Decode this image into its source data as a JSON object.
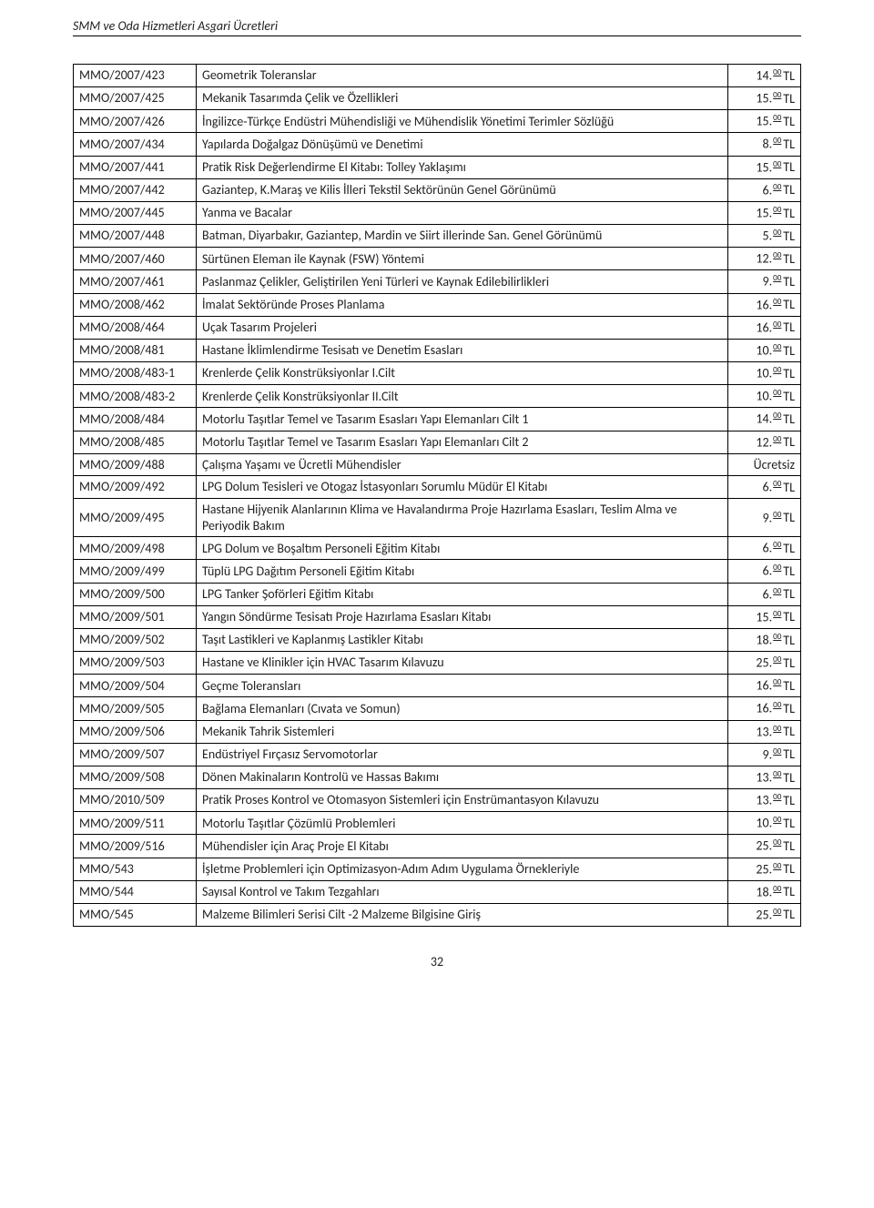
{
  "header": {
    "title": "SMM ve Oda Hizmetleri Asgari Ücretleri"
  },
  "table": {
    "columns": [
      "code",
      "title",
      "price"
    ],
    "rows": [
      {
        "code": "MMO/2007/423",
        "title": "Geometrik Toleranslar",
        "int": "14.",
        "cents": "00",
        "cur": "TL"
      },
      {
        "code": "MMO/2007/425",
        "title": "Mekanik Tasarımda Çelik ve Özellikleri",
        "int": "15.",
        "cents": "00",
        "cur": "TL"
      },
      {
        "code": "MMO/2007/426",
        "title": "İngilizce-Türkçe Endüstri Mühendisliği ve Mühendislik Yönetimi Terimler Sözlüğü",
        "int": "15.",
        "cents": "00",
        "cur": "TL"
      },
      {
        "code": "MMO/2007/434",
        "title": "Yapılarda Doğalgaz Dönüşümü ve Denetimi",
        "int": "8.",
        "cents": "00",
        "cur": "TL"
      },
      {
        "code": "MMO/2007/441",
        "title": "Pratik Risk Değerlendirme El Kitabı: Tolley Yaklaşımı",
        "int": "15.",
        "cents": "00",
        "cur": "TL"
      },
      {
        "code": "MMO/2007/442",
        "title": "Gaziantep, K.Maraş ve Kilis İlleri Tekstil Sektörünün Genel Görünümü",
        "int": "6.",
        "cents": "00",
        "cur": "TL"
      },
      {
        "code": "MMO/2007/445",
        "title": "Yanma ve Bacalar",
        "int": "15.",
        "cents": "00",
        "cur": "TL"
      },
      {
        "code": "MMO/2007/448",
        "title": "Batman, Diyarbakır, Gaziantep, Mardin ve Siirt illerinde San. Genel Görünümü",
        "int": "5.",
        "cents": "00",
        "cur": "TL"
      },
      {
        "code": "MMO/2007/460",
        "title": "Sürtünen Eleman ile Kaynak (FSW) Yöntemi",
        "int": "12.",
        "cents": "00",
        "cur": "TL"
      },
      {
        "code": "MMO/2007/461",
        "title": "Paslanmaz Çelikler, Geliştirilen Yeni Türleri ve Kaynak Edilebilirlikleri",
        "int": "9.",
        "cents": "00",
        "cur": "TL"
      },
      {
        "code": "MMO/2008/462",
        "title": "İmalat Sektöründe Proses Planlama",
        "int": "16.",
        "cents": "00",
        "cur": "TL"
      },
      {
        "code": "MMO/2008/464",
        "title": "Uçak Tasarım Projeleri",
        "int": "16.",
        "cents": "00",
        "cur": "TL"
      },
      {
        "code": "MMO/2008/481",
        "title": "Hastane İklimlendirme Tesisatı ve Denetim Esasları",
        "int": "10.",
        "cents": "00",
        "cur": "TL"
      },
      {
        "code": "MMO/2008/483-1",
        "title": "Krenlerde Çelik Konstrüksiyonlar I.Cilt",
        "int": "10.",
        "cents": "00",
        "cur": "TL"
      },
      {
        "code": "MMO/2008/483-2",
        "title": "Krenlerde Çelik Konstrüksiyonlar II.Cilt",
        "int": "10.",
        "cents": "00",
        "cur": "TL"
      },
      {
        "code": "MMO/2008/484",
        "title": "Motorlu Taşıtlar Temel ve Tasarım Esasları Yapı Elemanları Cilt 1",
        "int": "14.",
        "cents": "00",
        "cur": "TL"
      },
      {
        "code": "MMO/2008/485",
        "title": "Motorlu Taşıtlar Temel ve Tasarım Esasları Yapı Elemanları Cilt 2",
        "int": "12.",
        "cents": "00",
        "cur": "TL"
      },
      {
        "code": "MMO/2009/488",
        "title": "Çalışma Yaşamı ve Ücretli Mühendisler",
        "free": "Ücretsiz"
      },
      {
        "code": "MMO/2009/492",
        "title": "LPG Dolum Tesisleri ve Otogaz İstasyonları Sorumlu Müdür El Kitabı",
        "int": "6.",
        "cents": "00",
        "cur": "TL"
      },
      {
        "code": "MMO/2009/495",
        "title": "Hastane Hijyenik Alanlarının Klima ve Havalandırma Proje Hazırlama Esasları, Teslim Alma ve Periyodik Bakım",
        "int": "9.",
        "cents": "00",
        "cur": "TL"
      },
      {
        "code": "MMO/2009/498",
        "title": "LPG Dolum ve Boşaltım Personeli Eğitim Kitabı",
        "int": "6.",
        "cents": "00",
        "cur": "TL"
      },
      {
        "code": "MMO/2009/499",
        "title": "Tüplü LPG Dağıtım Personeli Eğitim Kitabı",
        "int": "6.",
        "cents": "00",
        "cur": "TL"
      },
      {
        "code": "MMO/2009/500",
        "title": "LPG Tanker Şoförleri Eğitim Kitabı",
        "int": "6.",
        "cents": "00",
        "cur": "TL"
      },
      {
        "code": "MMO/2009/501",
        "title": "Yangın Söndürme Tesisatı Proje Hazırlama Esasları Kitabı",
        "int": "15.",
        "cents": "00",
        "cur": "TL"
      },
      {
        "code": "MMO/2009/502",
        "title": "Taşıt Lastikleri ve Kaplanmış Lastikler Kitabı",
        "int": "18.",
        "cents": "00",
        "cur": "TL"
      },
      {
        "code": "MMO/2009/503",
        "title": "Hastane ve Klinikler için HVAC Tasarım Kılavuzu",
        "int": "25.",
        "cents": "00",
        "cur": "TL"
      },
      {
        "code": "MMO/2009/504",
        "title": "Geçme Toleransları",
        "int": "16.",
        "cents": "00",
        "cur": "TL"
      },
      {
        "code": "MMO/2009/505",
        "title": "Bağlama Elemanları (Cıvata ve Somun)",
        "int": "16.",
        "cents": "00",
        "cur": "TL"
      },
      {
        "code": "MMO/2009/506",
        "title": "Mekanik Tahrik Sistemleri",
        "int": "13.",
        "cents": "00",
        "cur": "TL"
      },
      {
        "code": "MMO/2009/507",
        "title": "Endüstriyel Fırçasız Servomotorlar",
        "int": "9.",
        "cents": "00",
        "cur": "TL"
      },
      {
        "code": "MMO/2009/508",
        "title": "Dönen Makinaların Kontrolü ve Hassas Bakımı",
        "int": "13.",
        "cents": "00",
        "cur": "TL"
      },
      {
        "code": "MMO/2010/509",
        "title": "Pratik Proses Kontrol ve Otomasyon Sistemleri için Enstrümantasyon Kılavuzu",
        "int": "13.",
        "cents": "00",
        "cur": "TL"
      },
      {
        "code": "MMO/2009/511",
        "title": "Motorlu Taşıtlar Çözümlü Problemleri",
        "int": "10.",
        "cents": "00",
        "cur": "TL"
      },
      {
        "code": "MMO/2009/516",
        "title": "Mühendisler için Araç Proje El Kitabı",
        "int": "25.",
        "cents": "00",
        "cur": "TL"
      },
      {
        "code": "MMO/543",
        "title": "İşletme Problemleri için Optimizasyon-Adım Adım Uygulama Örnekleriyle",
        "int": "25.",
        "cents": "00",
        "cur": "TL"
      },
      {
        "code": "MMO/544",
        "title": "Sayısal Kontrol ve Takım Tezgahları",
        "int": "18.",
        "cents": "00",
        "cur": "TL"
      },
      {
        "code": "MMO/545",
        "title": "Malzeme Bilimleri Serisi Cilt -2 Malzeme Bilgisine Giriş",
        "int": "25.",
        "cents": "00",
        "cur": "TL"
      }
    ]
  },
  "page_number": "32",
  "style": {
    "text_color": "#222222",
    "border_color": "#000000",
    "background_color": "#ffffff",
    "body_fontsize": 14,
    "cents_fontsize": 9
  }
}
